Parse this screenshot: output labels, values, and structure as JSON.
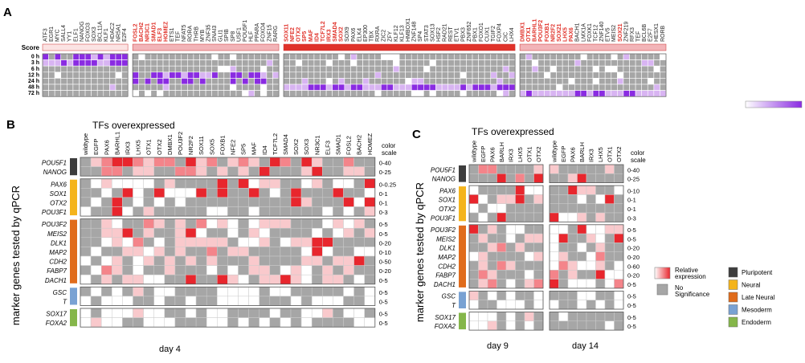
{
  "colors": {
    "gray": "#a6a6a6",
    "white": "#ffffff",
    "purple": "#8a2be2",
    "purple_light": "#d8b4f2",
    "red": "#e8262d",
    "red_light": "#f9c9cc",
    "score_light": "#f2b4b8",
    "score_dark": "#e0322a",
    "pluripotent": "#3d3d3d",
    "neural": "#f4b41c",
    "late_neural": "#e06c1c",
    "mesoderm": "#79a2d3",
    "endoderm": "#85b64a",
    "highlight_text": "#e0322a"
  },
  "panelA": {
    "label": "A",
    "score_label": "Score",
    "rows": [
      "0 h",
      "3 h",
      "6 h",
      "12 h",
      "24 h",
      "48 h",
      "72 h"
    ],
    "groups": [
      {
        "genes": [
          "ATF3",
          "EGR1",
          "MYC",
          "SALL4",
          "YY1",
          "ELF1",
          "NANOG",
          "FOXO3",
          "SOX3",
          "BCL11A",
          "KLF1",
          "HDAC2",
          "NR5A1",
          "E2F4"
        ],
        "red": []
      },
      {
        "genes": [
          "FOSL2",
          "BACH2",
          "NR3C1",
          "SMAD1",
          "ELF3",
          "HOMEZ",
          "ETS1",
          "TEF",
          "NFAT5",
          "RORA",
          "THRB",
          "MYB",
          "ZNF35",
          "SNAI3",
          "GLI1",
          "SPIB",
          "SP8",
          "USF1",
          "POU5F1",
          "HLF",
          "PPARA",
          "FOXO4",
          "ZNF15",
          "RARG"
        ],
        "red": [
          "FOSL2",
          "BACH2",
          "NR3C1",
          "SMAD1",
          "ELF3",
          "HOMEZ"
        ]
      },
      {
        "genes": [
          "SOX11",
          "NFE2",
          "OTX2",
          "SP5",
          "MAF",
          "ID4",
          "TCF7L2",
          "IRX3",
          "SMAD4",
          "SOX2",
          "SOX9",
          "PAX6",
          "ELK4",
          "EP300",
          "TBX",
          "RXRA",
          "ZIC2",
          "ZFY",
          "KLF12",
          "KLF13",
          "HMBOX1",
          "ZNF148",
          "SP4",
          "STAT3",
          "SOX13",
          "HSF2",
          "RAD21",
          "REST",
          "ETV1",
          "PBX3",
          "ZNF652",
          "PBX1",
          "FOXO1",
          "CUX1",
          "TGIF2",
          "FOXP4",
          "CIC",
          "LHX4"
        ],
        "red": [
          "SOX11",
          "NFE2",
          "OTX2",
          "SP5",
          "MAF",
          "ID4",
          "TCF7L2",
          "IRX3",
          "SMAD4",
          "SOX2"
        ]
      },
      {
        "genes": [
          "DMBX1",
          "OTX1",
          "BARHL1",
          "POU3F2",
          "FOXB1",
          "NR2F2",
          "SOX21",
          "LHX5",
          "PAX6",
          "BACH1",
          "LMX1A",
          "FOXK1",
          "TCF12",
          "ZNF140",
          "ETV5",
          "MEIS2",
          "SOX21",
          "ZNF219",
          "RFX3",
          "TEF",
          "BCL6B",
          "E2F7",
          "HESX1",
          "RORB"
        ],
        "red": [
          "DMBX1",
          "OTX1",
          "BARHL1",
          "POU3F2",
          "FOXB1",
          "NR2F2",
          "SOX21",
          "LHX5",
          "PAX6"
        ]
      }
    ],
    "legend_gradient": "gradient-bar"
  },
  "panelB": {
    "label": "B",
    "title": "TFs overexpressed",
    "scale_header": [
      "color",
      "scale"
    ],
    "cols": [
      "wildtype",
      "EGFP",
      "PAX6",
      "BARHL1",
      "IRX3",
      "LHX5",
      "OTX1",
      "OTX2",
      "DMBX1",
      "POU3F2",
      "NR2F2",
      "SOX11",
      "SOX5",
      "FOXB1",
      "NFE2",
      "SP5",
      "MAF",
      "ID4",
      "TCF7L2",
      "SMAD4",
      "SOX2",
      "SOX3",
      "NR3C1",
      "ELF3",
      "SMAD1",
      "FOSL2",
      "BACH2",
      "HOMEZ"
    ],
    "row_groups": [
      {
        "cat": "pluripotent",
        "rows": [
          "POU5F1",
          "NANOG"
        ],
        "scales": [
          "0-40",
          "0-25"
        ]
      },
      {
        "cat": "neural",
        "rows": [
          "PAX6",
          "SOX1",
          "OTX2",
          "POU3F1"
        ],
        "scales": [
          "0-0.25",
          "0-1",
          "0-1",
          "0-3"
        ]
      },
      {
        "cat": "late_neural",
        "rows": [
          "POU3F2",
          "MEIS2",
          "DLK1",
          "MAP2",
          "CDH2",
          "FABP7",
          "DACH1"
        ],
        "scales": [
          "0-5",
          "0-5",
          "0-20",
          "0-10",
          "0-50",
          "0-20",
          "0-5"
        ]
      },
      {
        "cat": "mesoderm",
        "rows": [
          "GSC",
          "T"
        ],
        "scales": [
          "0-5",
          "0-5"
        ]
      },
      {
        "cat": "endoderm",
        "rows": [
          "SOX17",
          "FOXA2"
        ],
        "scales": [
          "0-5",
          "0-5"
        ]
      }
    ],
    "day_label": "day 4",
    "y_axis_label": "marker genes tested by qPCR"
  },
  "panelC": {
    "label": "C",
    "title": "TFs overexpressed",
    "scale_header": [
      "color",
      "scale"
    ],
    "cols": [
      "wildtype",
      "EGFP",
      "PAX6",
      "BARLH",
      "IRX3",
      "LHX5",
      "OTX1",
      "OTX2",
      "wildtype",
      "EGFP",
      "PAX6",
      "BARLH",
      "IRX3",
      "LHX5",
      "OTX1",
      "OTX2"
    ],
    "row_groups": [
      {
        "cat": "pluripotent",
        "rows": [
          "POU5F1",
          "NANOG"
        ],
        "scales": [
          "0-40",
          "0-25"
        ]
      },
      {
        "cat": "neural",
        "rows": [
          "PAX6",
          "SOX1",
          "OTX2",
          "POU3F1"
        ],
        "scales": [
          "0-10",
          "0-1",
          "0-1",
          "0-3"
        ]
      },
      {
        "cat": "late_neural",
        "rows": [
          "POU3F2",
          "MEIS2",
          "DLK1",
          "MAP2",
          "CDH2",
          "FABP7",
          "DACH1"
        ],
        "scales": [
          "0-5",
          "0-5",
          "0-20",
          "0-20",
          "0-60",
          "0-20",
          "0-5"
        ]
      },
      {
        "cat": "mesoderm",
        "rows": [
          "GSC",
          "T"
        ],
        "scales": [
          "0-5",
          "0-5"
        ]
      },
      {
        "cat": "endoderm",
        "rows": [
          "SOX17",
          "FOXA2"
        ],
        "scales": [
          "0-5",
          "0-5"
        ]
      }
    ],
    "day_labels": [
      "day 9",
      "day 14"
    ],
    "y_axis_label": "marker genes tested by qPCR"
  },
  "legend": {
    "relative_expression": [
      "Relative",
      "expression"
    ],
    "no_significance": [
      "No",
      "Significance"
    ],
    "categories": [
      {
        "key": "pluripotent",
        "label": "Pluripotent"
      },
      {
        "key": "neural",
        "label": "Neural"
      },
      {
        "key": "late_neural",
        "label": "Late Neural"
      },
      {
        "key": "mesoderm",
        "label": "Mesoderm"
      },
      {
        "key": "endoderm",
        "label": "Endoderm"
      }
    ]
  }
}
